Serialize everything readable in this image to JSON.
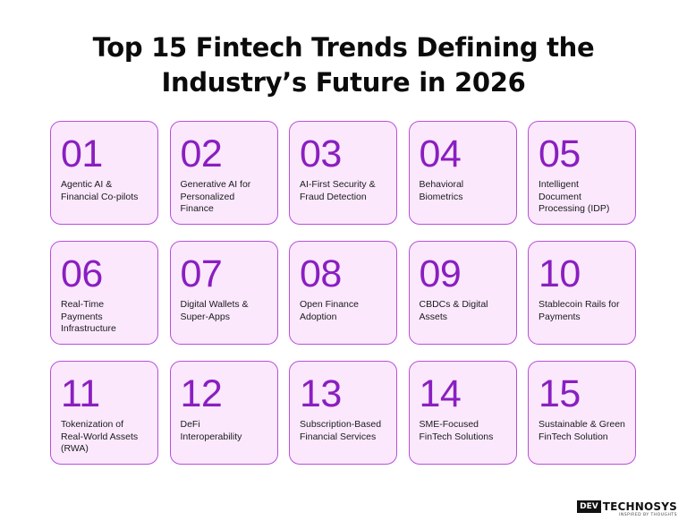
{
  "title": {
    "line1": "Top 15 Fintech Trends Defining the",
    "line2": "Industry’s Future in 2026"
  },
  "trends": [
    {
      "number": "01",
      "label": "Agentic AI & Financial Co-pilots"
    },
    {
      "number": "02",
      "label": "Generative AI for Personalized Finance"
    },
    {
      "number": "03",
      "label": "AI-First Security & Fraud Detection"
    },
    {
      "number": "04",
      "label": "Behavioral Biometrics"
    },
    {
      "number": "05",
      "label": "Intelligent Document Processing (IDP)"
    },
    {
      "number": "06",
      "label": "Real-Time Payments Infrastructure"
    },
    {
      "number": "07",
      "label": "Digital Wallets & Super-Apps"
    },
    {
      "number": "08",
      "label": "Open Finance Adoption"
    },
    {
      "number": "09",
      "label": "CBDCs & Digital Assets"
    },
    {
      "number": "10",
      "label": "Stablecoin Rails for Payments"
    },
    {
      "number": "11",
      "label": "Tokenization of Real-World Assets (RWA)"
    },
    {
      "number": "12",
      "label": "DeFi Interoperability"
    },
    {
      "number": "13",
      "label": "Subscription-Based Financial Services"
    },
    {
      "number": "14",
      "label": "SME-Focused FinTech Solutions"
    },
    {
      "number": "15",
      "label": "Sustainable & Green FinTech Solution"
    }
  ],
  "logo": {
    "box": "DEV",
    "text": "TECHNOSYS",
    "tagline": "INSPIRED BY THOUGHTS"
  },
  "colors": {
    "card_background": "#fbe8fd",
    "card_border": "#b84fd8",
    "number": "#8a1ec0",
    "title": "#0b0b0b"
  }
}
